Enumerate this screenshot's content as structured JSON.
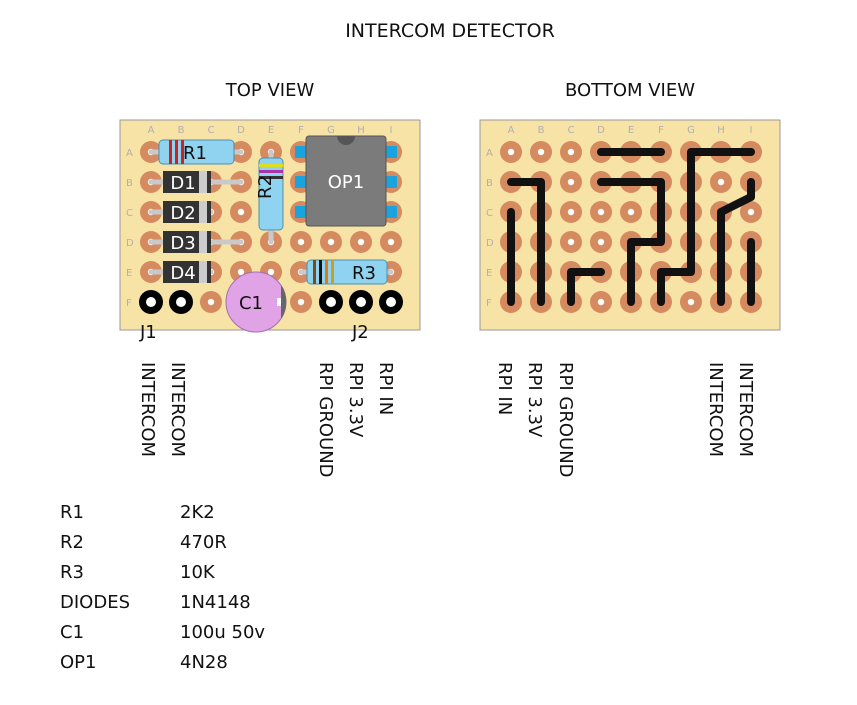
{
  "title": "INTERCOM DETECTOR",
  "top_view_label": "TOP VIEW",
  "bottom_view_label": "BOTTOM VIEW",
  "columns": [
    "A",
    "B",
    "C",
    "D",
    "E",
    "F",
    "G",
    "H",
    "I"
  ],
  "rows": [
    "A",
    "B",
    "C",
    "D",
    "E",
    "F"
  ],
  "colors": {
    "board": "#f7e3a6",
    "pad": "#d58a5f",
    "track": "#111111",
    "resistor": "#8fd3f0",
    "diode": "#333333",
    "capacitor": "#e0a3e6",
    "ic": "#7b7b7b",
    "ic_pin": "#1aa3dd"
  },
  "components": {
    "r1": "R1",
    "r2": "R2",
    "r3": "R3",
    "d1": "D1",
    "d2": "D2",
    "d3": "D3",
    "d4": "D4",
    "c1": "C1",
    "op1": "OP1",
    "j1": "J1",
    "j2": "J2"
  },
  "top_pin_labels": [
    "INTERCOM",
    "INTERCOM",
    "RPI GROUND",
    "RPI 3.3V",
    "RPI IN"
  ],
  "bottom_pin_labels": [
    "RPI IN",
    "RPI 3.3V",
    "RPI GROUND",
    "INTERCOM",
    "INTERCOM"
  ],
  "bom": [
    {
      "ref": "R1",
      "value": "2K2"
    },
    {
      "ref": "R2",
      "value": "470R"
    },
    {
      "ref": "R3",
      "value": "10K"
    },
    {
      "ref": "DIODES",
      "value": "1N4148"
    },
    {
      "ref": "C1",
      "value": "100u 50v"
    },
    {
      "ref": "OP1",
      "value": "4N28"
    }
  ]
}
